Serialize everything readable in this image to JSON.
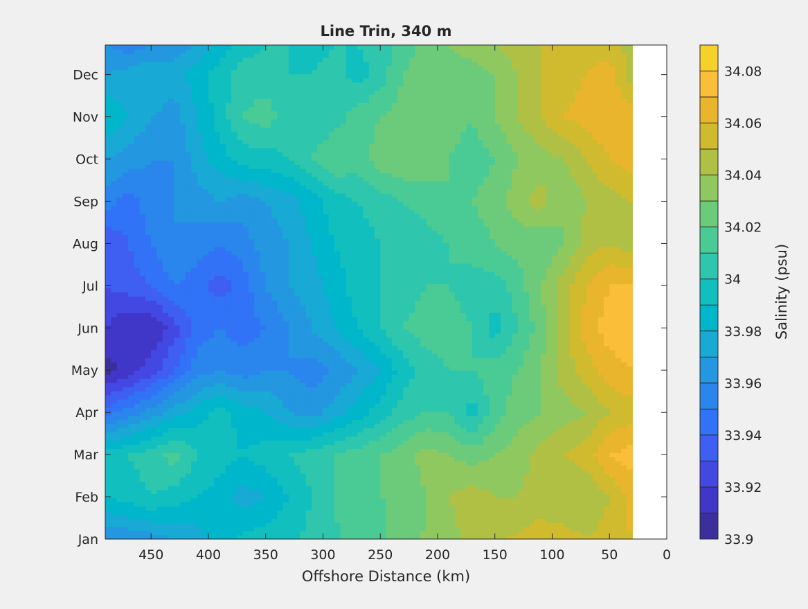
{
  "chart_data": {
    "type": "heatmap",
    "title": "Line Trin, 340 m",
    "xlabel": "Offshore Distance (km)",
    "ylabel": "",
    "x_reversed": true,
    "xlim": [
      0,
      490
    ],
    "x_data_range": [
      30,
      490
    ],
    "x_ticks": [
      450,
      400,
      350,
      300,
      250,
      200,
      150,
      100,
      50,
      0
    ],
    "y_ticks": [
      "Jan",
      "Feb",
      "Mar",
      "Apr",
      "May",
      "Jun",
      "Jul",
      "Aug",
      "Sep",
      "Oct",
      "Nov",
      "Dec"
    ],
    "colorbar": {
      "label": "Salinity (psu)",
      "range": [
        33.9,
        34.09
      ],
      "tick_labels": [
        "33.9",
        "33.92",
        "33.94",
        "33.96",
        "33.98",
        "34",
        "34.02",
        "34.04",
        "34.06",
        "34.08"
      ],
      "tick_values": [
        33.9,
        33.92,
        33.94,
        33.96,
        33.98,
        34.0,
        34.02,
        34.04,
        34.06,
        34.08
      ],
      "levels": [
        33.9,
        33.91,
        33.92,
        33.93,
        33.94,
        33.95,
        33.96,
        33.97,
        33.98,
        33.99,
        34.0,
        34.01,
        34.02,
        34.03,
        34.04,
        34.05,
        34.06,
        34.07,
        34.08,
        34.09
      ],
      "colors": [
        "#3b2f9d",
        "#4037c8",
        "#4448e3",
        "#3e5ff1",
        "#3172f7",
        "#2a86ec",
        "#2397e0",
        "#18a9d4",
        "#00b6cb",
        "#10bfbe",
        "#2ec6ac",
        "#4acb95",
        "#6ccb7b",
        "#8fc85f",
        "#b0c044",
        "#d0ba2e",
        "#e9b52d",
        "#fbbe39",
        "#f7d12b",
        "#f6e525"
      ]
    },
    "grid": false,
    "z_samples": {
      "x": [
        490,
        470,
        450,
        430,
        410,
        390,
        370,
        350,
        330,
        310,
        290,
        270,
        250,
        230,
        210,
        190,
        170,
        150,
        130,
        110,
        90,
        70,
        50,
        30
      ],
      "y": [
        0,
        1,
        2,
        3,
        4,
        5,
        6,
        7,
        8,
        9,
        10,
        11,
        11.7
      ],
      "z": [
        [
          33.96,
          33.962,
          33.965,
          33.97,
          33.975,
          33.985,
          33.992,
          33.996,
          33.998,
          34.003,
          34.009,
          34.014,
          34.019,
          34.025,
          34.031,
          34.037,
          34.043,
          34.049,
          34.052,
          34.055,
          34.055,
          34.05,
          34.055,
          34.06
        ],
        [
          33.99,
          33.995,
          34.0,
          33.995,
          33.99,
          33.985,
          33.975,
          33.98,
          33.99,
          34.0,
          34.01,
          34.015,
          34.02,
          34.02,
          34.03,
          34.04,
          34.045,
          34.04,
          34.04,
          34.045,
          34.04,
          34.04,
          34.05,
          34.065
        ],
        [
          33.995,
          34.0,
          34.005,
          34.015,
          34.0,
          33.995,
          33.99,
          33.995,
          34.0,
          34.005,
          34.01,
          34.015,
          34.02,
          34.025,
          34.035,
          34.03,
          34.025,
          34.03,
          34.035,
          34.045,
          34.05,
          34.055,
          34.07,
          34.075
        ],
        [
          33.945,
          33.955,
          33.965,
          33.975,
          33.985,
          33.995,
          33.985,
          33.98,
          33.97,
          33.965,
          33.975,
          33.985,
          33.995,
          34.005,
          34.01,
          34.01,
          33.995,
          34.015,
          34.025,
          34.03,
          34.035,
          34.04,
          34.05,
          34.055
        ],
        [
          33.905,
          33.915,
          33.925,
          33.94,
          33.955,
          33.96,
          33.955,
          33.96,
          33.96,
          33.955,
          33.96,
          33.97,
          33.98,
          33.995,
          34.005,
          34.01,
          34.01,
          34.015,
          34.02,
          34.03,
          34.045,
          34.055,
          34.065,
          34.07
        ],
        [
          33.92,
          33.91,
          33.91,
          33.925,
          33.945,
          33.95,
          33.945,
          33.95,
          33.96,
          33.97,
          33.98,
          33.99,
          34.0,
          34.01,
          34.015,
          34.015,
          34.01,
          33.995,
          34.01,
          34.025,
          34.045,
          34.065,
          34.075,
          34.08
        ],
        [
          33.93,
          33.935,
          33.94,
          33.95,
          33.945,
          33.935,
          33.945,
          33.96,
          33.97,
          33.975,
          33.985,
          33.995,
          34.0,
          34.005,
          34.01,
          34.01,
          34.005,
          34.005,
          34.015,
          34.03,
          34.045,
          34.06,
          34.07,
          34.07
        ],
        [
          33.93,
          33.94,
          33.95,
          33.96,
          33.955,
          33.95,
          33.955,
          33.965,
          33.97,
          33.98,
          33.99,
          33.995,
          34.0,
          34.0,
          34.005,
          34.01,
          34.015,
          34.02,
          34.025,
          34.02,
          34.03,
          34.045,
          34.05,
          34.045
        ],
        [
          33.955,
          33.945,
          33.955,
          33.96,
          33.965,
          33.97,
          33.965,
          33.97,
          33.975,
          33.985,
          33.995,
          34.0,
          34.005,
          34.01,
          34.015,
          34.02,
          34.02,
          34.025,
          34.035,
          34.045,
          34.03,
          34.04,
          34.045,
          34.05
        ],
        [
          33.97,
          33.965,
          33.96,
          33.96,
          33.975,
          33.985,
          33.995,
          33.995,
          34.0,
          34.01,
          34.02,
          34.015,
          34.025,
          34.03,
          34.025,
          34.02,
          34.015,
          34.02,
          34.03,
          34.035,
          34.04,
          34.05,
          34.06,
          34.065
        ],
        [
          33.99,
          33.98,
          33.97,
          33.965,
          33.98,
          33.995,
          34.01,
          34.015,
          34.005,
          34.0,
          34.005,
          34.015,
          34.02,
          34.025,
          34.03,
          34.025,
          34.02,
          34.03,
          34.04,
          34.05,
          34.06,
          34.065,
          34.07,
          34.065
        ],
        [
          33.97,
          33.975,
          33.98,
          33.975,
          33.985,
          33.995,
          34.005,
          34.005,
          34.0,
          34.0,
          34.005,
          33.995,
          34.005,
          34.02,
          34.025,
          34.025,
          34.025,
          34.03,
          34.04,
          34.05,
          34.055,
          34.06,
          34.065,
          34.045
        ],
        [
          33.96,
          33.955,
          33.96,
          33.965,
          33.97,
          33.985,
          33.995,
          34.0,
          34.0,
          33.995,
          34.0,
          34.0,
          34.005,
          34.015,
          34.025,
          34.03,
          34.035,
          34.04,
          34.045,
          34.05,
          34.055,
          34.055,
          34.055,
          34.045
        ]
      ]
    }
  }
}
